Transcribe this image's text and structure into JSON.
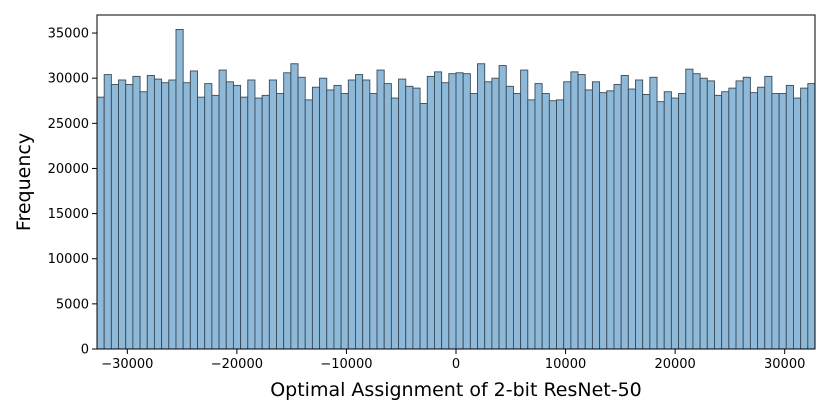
{
  "chart_data": {
    "type": "bar",
    "title": "",
    "xlabel": "Optimal Assignment of 2-bit ResNet-50",
    "ylabel": "Frequency",
    "xlim": [
      -32768,
      32767
    ],
    "ylim": [
      0,
      37000
    ],
    "grid": false,
    "bin_count": 100,
    "xticks": [
      -30000,
      -20000,
      -10000,
      0,
      10000,
      20000,
      30000
    ],
    "xtick_labels": [
      "−30000",
      "−20000",
      "−10000",
      "0",
      "10000",
      "20000",
      "30000"
    ],
    "yticks": [
      0,
      5000,
      10000,
      15000,
      20000,
      25000,
      30000,
      35000
    ],
    "ytick_labels": [
      "0",
      "5000",
      "10000",
      "15000",
      "20000",
      "25000",
      "30000",
      "35000"
    ],
    "bar_color": "#8fb9d9",
    "edge_color": "#3a4a57",
    "values": [
      27900,
      30400,
      29300,
      29800,
      29300,
      30200,
      28500,
      30300,
      29900,
      29500,
      29800,
      35400,
      29500,
      30800,
      27900,
      29400,
      28100,
      30900,
      29600,
      29200,
      27900,
      29800,
      27800,
      28100,
      29800,
      28300,
      30600,
      31600,
      30100,
      27600,
      29000,
      30000,
      28700,
      29200,
      28300,
      29800,
      30400,
      29800,
      28300,
      30900,
      29400,
      27800,
      29900,
      29100,
      28900,
      27200,
      30200,
      30700,
      29500,
      30500,
      30600,
      30500,
      28300,
      31600,
      29600,
      30000,
      31400,
      29100,
      28300,
      30900,
      27600,
      29400,
      28300,
      27500,
      27600,
      29600,
      30700,
      30400,
      28700,
      29600,
      28400,
      28600,
      29300,
      30300,
      28800,
      29800,
      28200,
      30100,
      27400,
      28500,
      27800,
      28300,
      31000,
      30500,
      30000,
      29700,
      28100,
      28500,
      28900,
      29700,
      30100,
      28400,
      29000,
      30200,
      28300,
      28300,
      29200,
      27800,
      28900,
      29400
    ]
  }
}
